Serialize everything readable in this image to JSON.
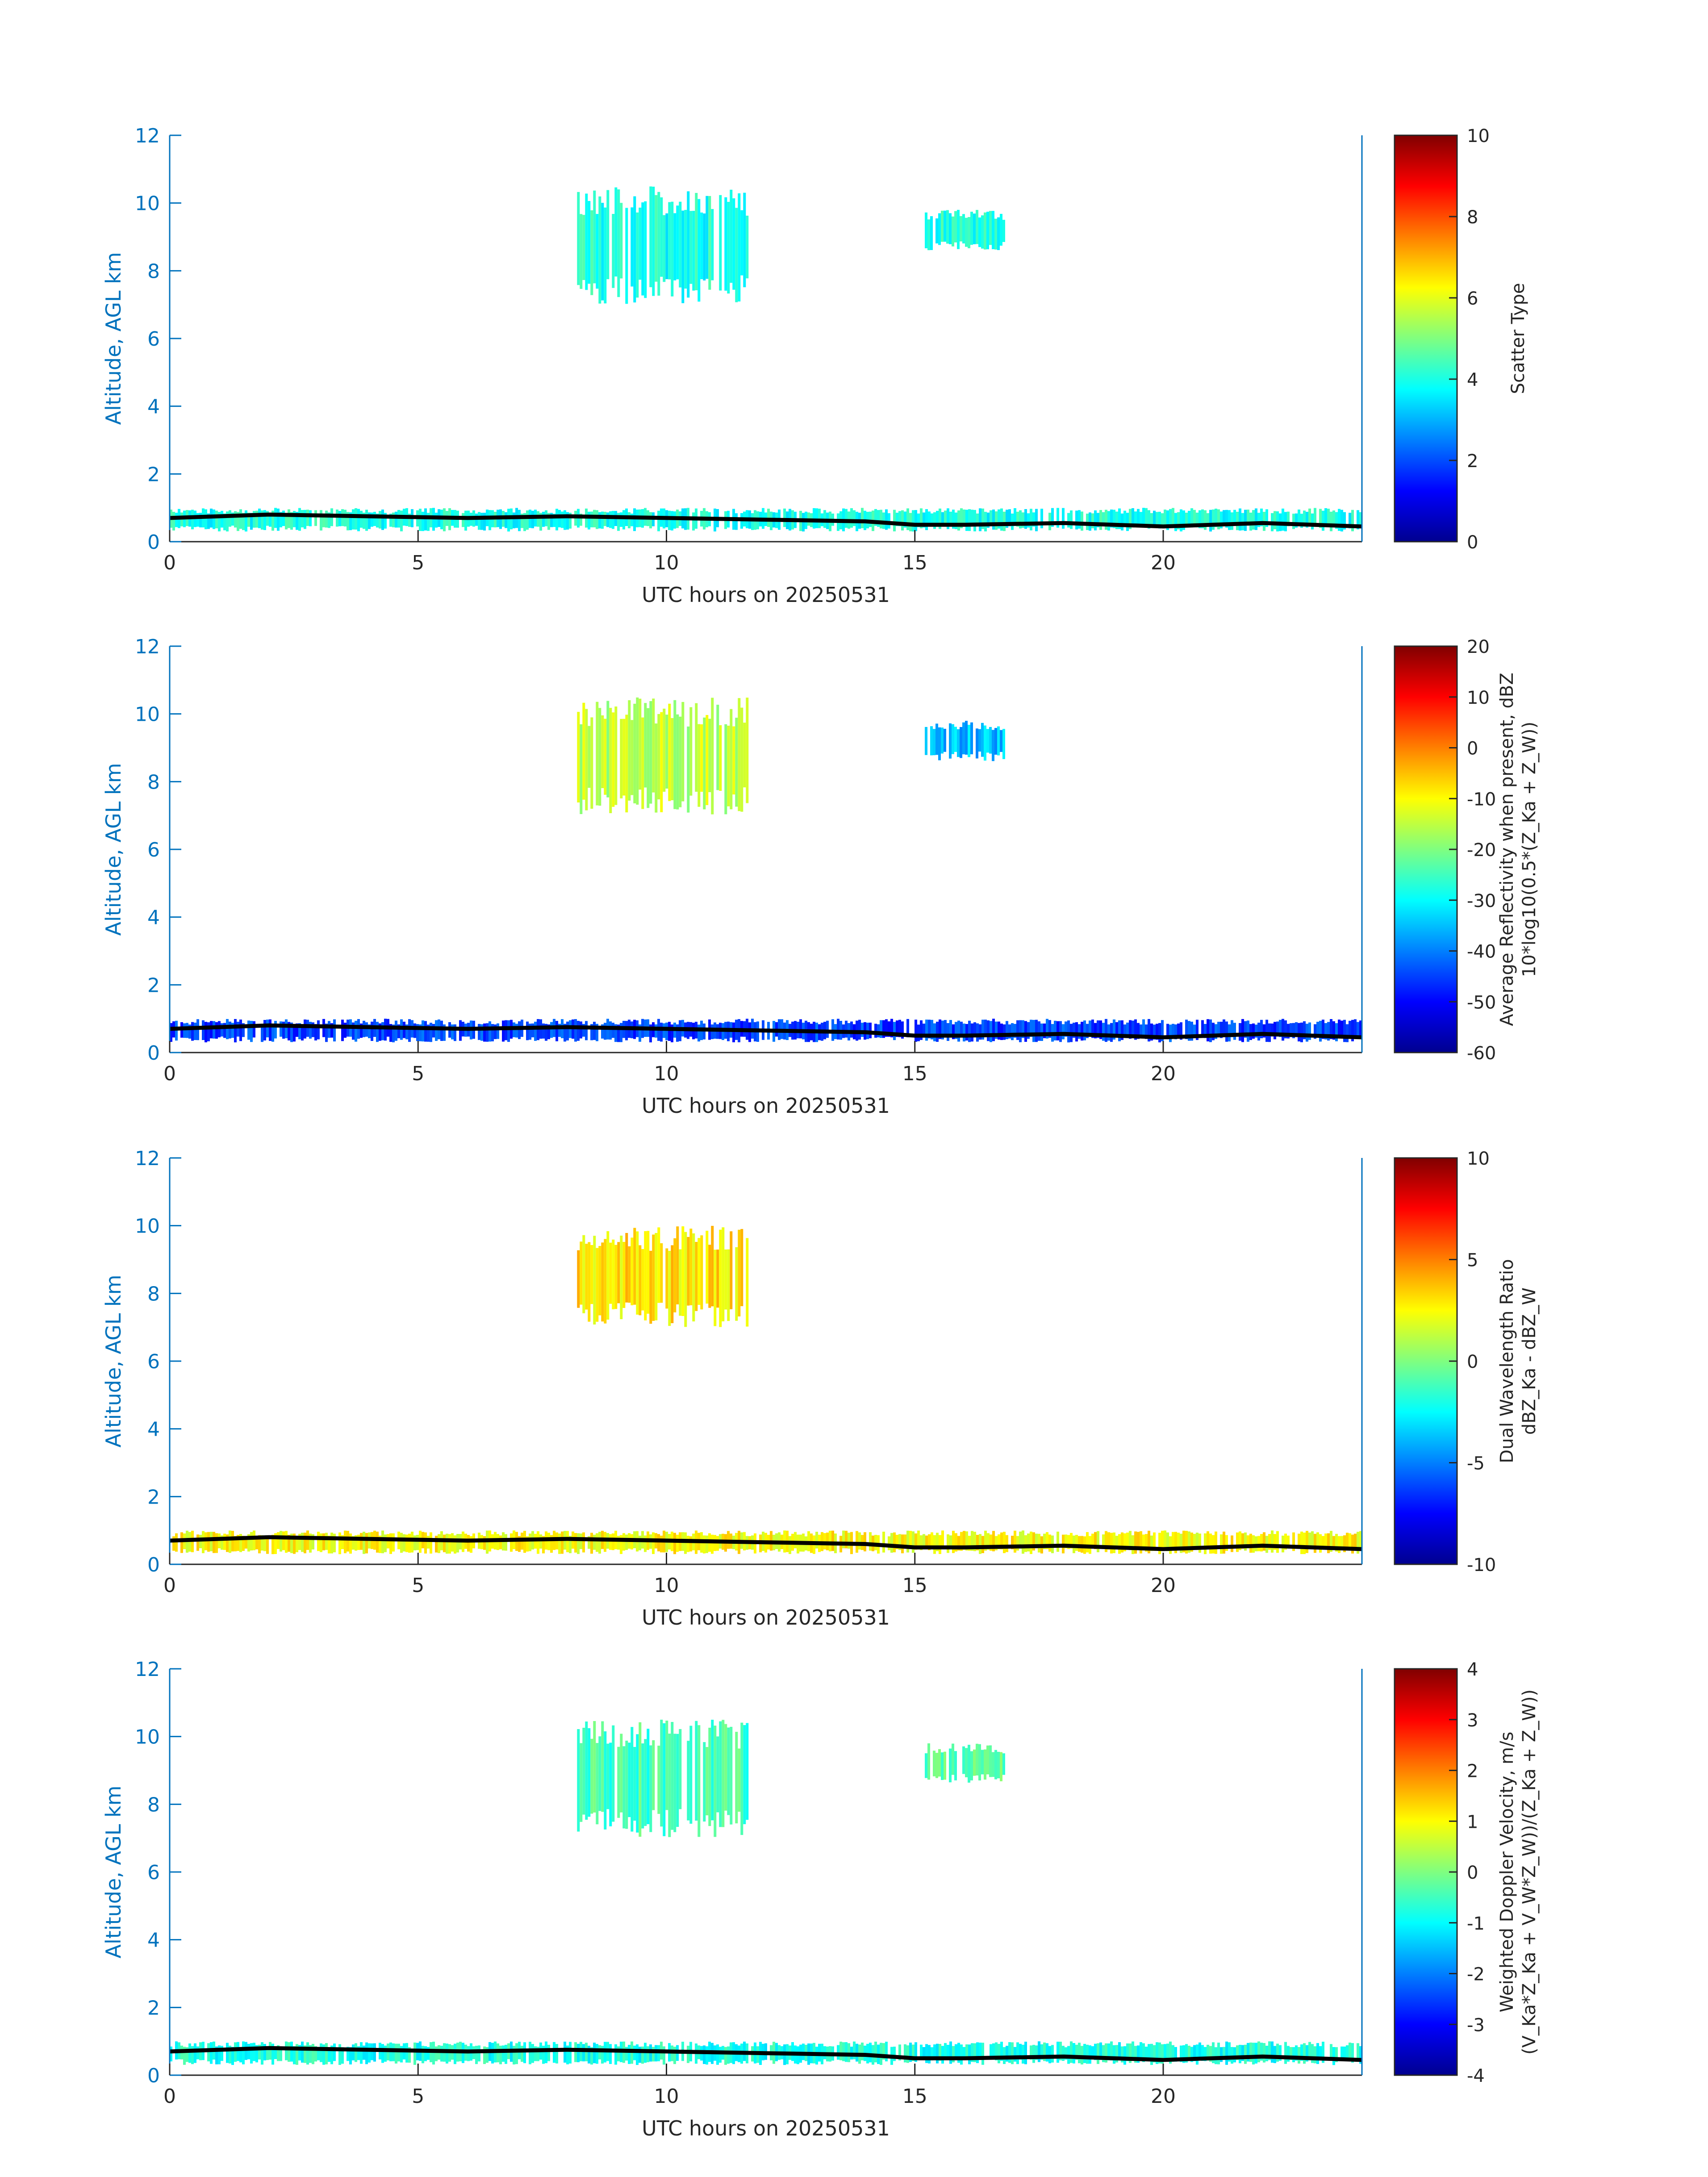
{
  "figure": {
    "panels": [
      {
        "ylabel": "Altitude, AGL km",
        "xlabel": "UTC hours on 20250531",
        "colorbar_label_lines": [
          "Scatter Type"
        ],
        "colorbar_ticks": [
          "0",
          "2",
          "4",
          "6",
          "8",
          "10"
        ],
        "colorbar_range": [
          0,
          10
        ]
      },
      {
        "ylabel": "Altitude, AGL km",
        "xlabel": "UTC hours on 20250531",
        "colorbar_label_lines": [
          "Average Reflectivity when present, dBZ",
          "10*log10(0.5*(Z_Ka + Z_W))"
        ],
        "colorbar_ticks": [
          "-60",
          "-50",
          "-40",
          "-30",
          "-20",
          "-10",
          "0",
          "10",
          "20"
        ],
        "colorbar_range": [
          -60,
          20
        ]
      },
      {
        "ylabel": "Altitude, AGL km",
        "xlabel": "UTC hours on 20250531",
        "colorbar_label_lines": [
          "Dual Wavelength Ratio",
          "dBZ_Ka - dBZ_W"
        ],
        "colorbar_ticks": [
          "-10",
          "-5",
          "0",
          "5",
          "10"
        ],
        "colorbar_range": [
          -10,
          10
        ]
      },
      {
        "ylabel": "Altitude, AGL km",
        "xlabel": "UTC hours on 20250531",
        "colorbar_label_lines": [
          "Weighted Doppler Velocity, m/s",
          "(V_Ka*Z_Ka + V_W*Z_W))/(Z_Ka + Z_W))"
        ],
        "colorbar_ticks": [
          "-4",
          "-3",
          "-2",
          "-1",
          "0",
          "1",
          "2",
          "3",
          "4"
        ],
        "colorbar_range": [
          -4,
          4
        ]
      }
    ],
    "colors": {
      "axis": "#0072BD",
      "text": "#262626",
      "cloud_base": "#000000"
    }
  },
  "chart_data": [
    {
      "type": "heatmap",
      "title": "",
      "xlabel": "UTC hours on 20250531",
      "ylabel": "Altitude, AGL km",
      "xlim": [
        0,
        24
      ],
      "ylim": [
        0,
        12
      ],
      "xticks": [
        0,
        5,
        10,
        15,
        20
      ],
      "yticks": [
        0,
        2,
        4,
        6,
        8,
        10,
        12
      ],
      "colorbar": {
        "label": "Scatter Type",
        "range": [
          0,
          10
        ],
        "colormap": "jet"
      },
      "features": [
        {
          "name": "boundary layer cloud",
          "x": [
            0,
            24
          ],
          "y": [
            0.3,
            1.0
          ],
          "value": 4
        },
        {
          "name": "high cloud",
          "x": [
            8.2,
            11.6
          ],
          "y": [
            7.0,
            10.5
          ],
          "value": 4
        },
        {
          "name": "high cloud",
          "x": [
            15.2,
            16.8
          ],
          "y": [
            8.6,
            9.8
          ],
          "value": 4
        }
      ],
      "cloud_base_line": {
        "x": [
          0,
          2,
          4,
          6,
          8,
          10,
          12,
          14,
          15,
          16,
          18,
          20,
          22,
          24
        ],
        "y": [
          0.7,
          0.8,
          0.75,
          0.7,
          0.75,
          0.7,
          0.65,
          0.6,
          0.5,
          0.5,
          0.55,
          0.45,
          0.55,
          0.45
        ]
      }
    },
    {
      "type": "heatmap",
      "title": "",
      "xlabel": "UTC hours on 20250531",
      "ylabel": "Altitude, AGL km",
      "xlim": [
        0,
        24
      ],
      "ylim": [
        0,
        12
      ],
      "xticks": [
        0,
        5,
        10,
        15,
        20
      ],
      "yticks": [
        0,
        2,
        4,
        6,
        8,
        10,
        12
      ],
      "colorbar": {
        "label": "Average Reflectivity when present, dBZ  10*log10(0.5*(Z_Ka + Z_W))",
        "range": [
          -60,
          20
        ],
        "colormap": "jet"
      },
      "features": [
        {
          "name": "boundary layer cloud",
          "x": [
            0,
            24
          ],
          "y": [
            0.3,
            1.0
          ],
          "value": -45
        },
        {
          "name": "high cloud",
          "x": [
            8.2,
            11.6
          ],
          "y": [
            7.0,
            10.5
          ],
          "value": -15
        },
        {
          "name": "high cloud",
          "x": [
            15.2,
            16.8
          ],
          "y": [
            8.6,
            9.8
          ],
          "value": -35
        }
      ],
      "cloud_base_line": {
        "x": [
          0,
          2,
          4,
          6,
          8,
          10,
          12,
          14,
          15,
          16,
          18,
          20,
          22,
          24
        ],
        "y": [
          0.7,
          0.8,
          0.75,
          0.7,
          0.75,
          0.7,
          0.65,
          0.6,
          0.5,
          0.5,
          0.55,
          0.45,
          0.55,
          0.45
        ]
      }
    },
    {
      "type": "heatmap",
      "title": "",
      "xlabel": "UTC hours on 20250531",
      "ylabel": "Altitude, AGL km",
      "xlim": [
        0,
        24
      ],
      "ylim": [
        0,
        12
      ],
      "xticks": [
        0,
        5,
        10,
        15,
        20
      ],
      "yticks": [
        0,
        2,
        4,
        6,
        8,
        10,
        12
      ],
      "colorbar": {
        "label": "Dual Wavelength Ratio  dBZ_Ka - dBZ_W",
        "range": [
          -10,
          10
        ],
        "colormap": "jet"
      },
      "features": [
        {
          "name": "boundary layer cloud",
          "x": [
            0,
            24
          ],
          "y": [
            0.3,
            1.0
          ],
          "value": 2.5
        },
        {
          "name": "high cloud",
          "x": [
            8.2,
            11.6
          ],
          "y": [
            7.0,
            10.0
          ],
          "value": 3
        }
      ],
      "cloud_base_line": {
        "x": [
          0,
          2,
          4,
          6,
          8,
          10,
          12,
          14,
          15,
          16,
          18,
          20,
          22,
          24
        ],
        "y": [
          0.7,
          0.8,
          0.75,
          0.7,
          0.75,
          0.7,
          0.65,
          0.6,
          0.5,
          0.5,
          0.55,
          0.45,
          0.55,
          0.45
        ]
      }
    },
    {
      "type": "heatmap",
      "title": "",
      "xlabel": "UTC hours on 20250531",
      "ylabel": "Altitude, AGL km",
      "xlim": [
        0,
        24
      ],
      "ylim": [
        0,
        12
      ],
      "xticks": [
        0,
        5,
        10,
        15,
        20
      ],
      "yticks": [
        0,
        2,
        4,
        6,
        8,
        10,
        12
      ],
      "colorbar": {
        "label": "Weighted Doppler Velocity, m/s  (V_Ka*Z_Ka + V_W*Z_W))/(Z_Ka + Z_W))",
        "range": [
          -4,
          4
        ],
        "colormap": "jet"
      },
      "features": [
        {
          "name": "boundary layer cloud",
          "x": [
            0,
            24
          ],
          "y": [
            0.3,
            1.0
          ],
          "value": -0.8
        },
        {
          "name": "high cloud",
          "x": [
            8.2,
            11.6
          ],
          "y": [
            7.0,
            10.5
          ],
          "value": -0.5
        },
        {
          "name": "high cloud",
          "x": [
            15.2,
            16.8
          ],
          "y": [
            8.6,
            9.8
          ],
          "value": -0.3
        }
      ],
      "cloud_base_line": {
        "x": [
          0,
          2,
          4,
          6,
          8,
          10,
          12,
          14,
          15,
          16,
          18,
          20,
          22,
          24
        ],
        "y": [
          0.7,
          0.8,
          0.75,
          0.7,
          0.75,
          0.7,
          0.65,
          0.6,
          0.5,
          0.5,
          0.55,
          0.45,
          0.55,
          0.45
        ]
      }
    }
  ]
}
